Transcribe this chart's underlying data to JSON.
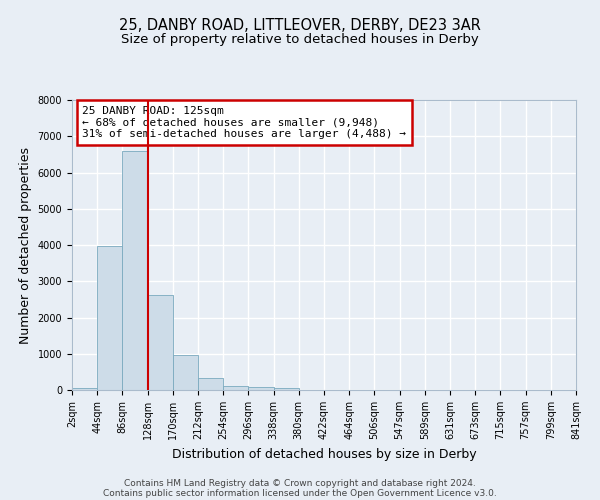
{
  "title": "25, DANBY ROAD, LITTLEOVER, DERBY, DE23 3AR",
  "subtitle": "Size of property relative to detached houses in Derby",
  "xlabel": "Distribution of detached houses by size in Derby",
  "ylabel": "Number of detached properties",
  "bin_labels": [
    "2sqm",
    "44sqm",
    "86sqm",
    "128sqm",
    "170sqm",
    "212sqm",
    "254sqm",
    "296sqm",
    "338sqm",
    "380sqm",
    "422sqm",
    "464sqm",
    "506sqm",
    "547sqm",
    "589sqm",
    "631sqm",
    "673sqm",
    "715sqm",
    "757sqm",
    "799sqm",
    "841sqm"
  ],
  "bar_values": [
    50,
    3980,
    6600,
    2620,
    960,
    330,
    120,
    70,
    50,
    0,
    0,
    0,
    0,
    0,
    0,
    0,
    0,
    0,
    0,
    0
  ],
  "bar_color": "#cddce8",
  "bar_edgecolor": "#7aaabf",
  "property_line_x": 3.0,
  "property_line_color": "#cc0000",
  "annotation_text": "25 DANBY ROAD: 125sqm\n← 68% of detached houses are smaller (9,948)\n31% of semi-detached houses are larger (4,488) →",
  "annotation_box_color": "#ffffff",
  "annotation_box_edgecolor": "#cc0000",
  "ylim": [
    0,
    8000
  ],
  "yticks": [
    0,
    1000,
    2000,
    3000,
    4000,
    5000,
    6000,
    7000,
    8000
  ],
  "footer1": "Contains HM Land Registry data © Crown copyright and database right 2024.",
  "footer2": "Contains public sector information licensed under the Open Government Licence v3.0.",
  "bg_color": "#e8eef5",
  "plot_bg_color": "#e8eef5",
  "grid_color": "#ffffff",
  "title_fontsize": 10.5,
  "subtitle_fontsize": 9.5,
  "axis_label_fontsize": 9,
  "tick_fontsize": 7,
  "footer_fontsize": 6.5,
  "annotation_fontsize": 8
}
